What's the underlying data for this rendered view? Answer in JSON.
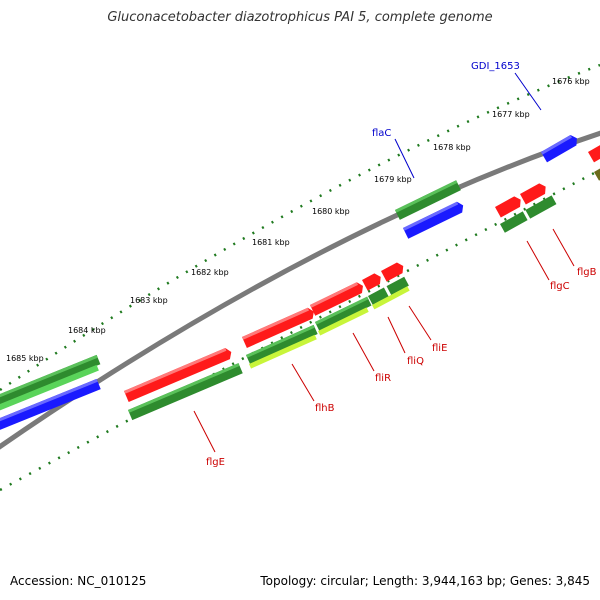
{
  "title": "Gluconacetobacter diazotrophicus PAI 5, complete genome",
  "footer": {
    "accession": "Accession: NC_010125",
    "topology": "Topology: circular; Length: 3,944,163 bp; Genes: 3,845"
  },
  "colors": {
    "backbone": "#7a7a7a",
    "tick": "#1f7a1f",
    "red_gene": "#ff1a1a",
    "green_gene": "#2e8b2e",
    "lime_gene": "#c8f53a",
    "blue_gene": "#1a1aff",
    "olive_gene": "#6b6b1a",
    "red_label": "#cc0000",
    "blue_label": "#0000cc"
  },
  "kbp_labels": [
    "1676 kbp",
    "1677 kbp",
    "1678 kbp",
    "1679 kbp",
    "1680 kbp",
    "1681 kbp",
    "1682 kbp",
    "1683 kbp",
    "1684 kbp",
    "1685 kbp"
  ],
  "gene_labels": [
    {
      "id": "gdi1653",
      "text": "GDI_1653",
      "color": "blue"
    },
    {
      "id": "flac",
      "text": "flaC",
      "color": "blue"
    },
    {
      "id": "flgb",
      "text": "flgB",
      "color": "red"
    },
    {
      "id": "flgc",
      "text": "flgC",
      "color": "red"
    },
    {
      "id": "flie",
      "text": "fliE",
      "color": "red"
    },
    {
      "id": "fliq",
      "text": "fliQ",
      "color": "red"
    },
    {
      "id": "flir",
      "text": "fliR",
      "color": "red"
    },
    {
      "id": "flhb",
      "text": "flhB",
      "color": "red"
    },
    {
      "id": "flge",
      "text": "flgE",
      "color": "red"
    }
  ]
}
